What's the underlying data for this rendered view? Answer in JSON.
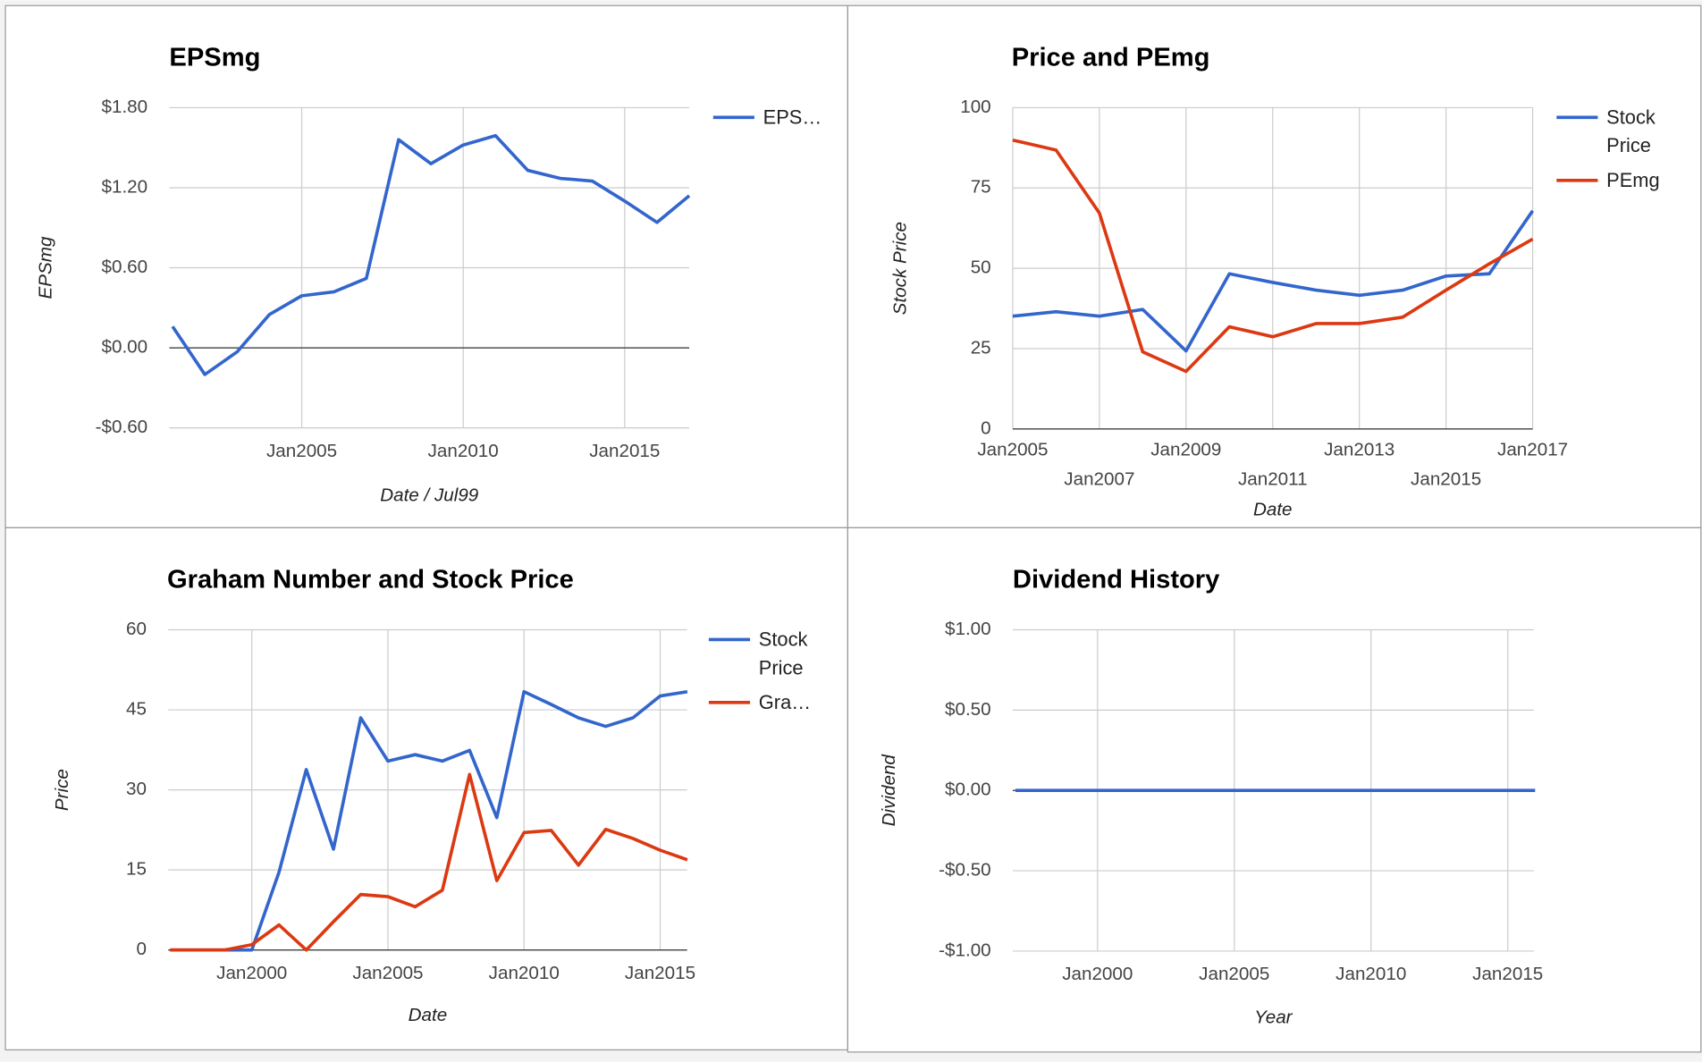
{
  "chart_data": [
    {
      "type": "line",
      "title": "EPSmg",
      "x_label": "Date / Jul99",
      "y_label": "EPSmg",
      "x": [
        2001,
        2002,
        2003,
        2004,
        2005,
        2006,
        2007,
        2008,
        2009,
        2010,
        2011,
        2012,
        2013,
        2014,
        2015,
        2016,
        2017
      ],
      "series": [
        {
          "name": "EPS…",
          "color": "#3366cc",
          "values": [
            0.16,
            -0.2,
            -0.03,
            0.25,
            0.39,
            0.42,
            0.52,
            1.56,
            1.38,
            1.52,
            1.59,
            1.33,
            1.27,
            1.25,
            1.1,
            0.94,
            1.14
          ]
        }
      ],
      "xlim": [
        2000.9,
        2017.0
      ],
      "xticks": [
        {
          "value": 2005,
          "label": "Jan2005"
        },
        {
          "value": 2010,
          "label": "Jan2010"
        },
        {
          "value": 2015,
          "label": "Jan2015"
        }
      ],
      "ylim": [
        -0.6,
        1.8
      ],
      "yticks": [
        {
          "value": -0.6,
          "label": "-$0.60"
        },
        {
          "value": 0,
          "label": "$0.00"
        },
        {
          "value": 0.6,
          "label": "$0.60"
        },
        {
          "value": 1.2,
          "label": "$1.20"
        },
        {
          "value": 1.8,
          "label": "$1.80"
        }
      ],
      "grid": true,
      "legend": "right"
    },
    {
      "type": "line",
      "title": "Price and PEmg",
      "x_label": "Date",
      "y_label": "Stock Price",
      "x": [
        2005,
        2006,
        2007,
        2008,
        2009,
        2010,
        2011,
        2012,
        2013,
        2014,
        2015,
        2016,
        2017
      ],
      "series": [
        {
          "name": "Stock Price",
          "color": "#3366cc",
          "values": [
            35.1,
            36.5,
            35.1,
            37.2,
            24.3,
            48.3,
            45.6,
            43.2,
            41.6,
            43.2,
            47.6,
            48.3,
            67.9
          ]
        },
        {
          "name": "PEmg",
          "color": "#dc3912",
          "values": [
            89.9,
            86.8,
            67.2,
            24.0,
            17.9,
            31.8,
            28.7,
            32.8,
            32.8,
            34.8,
            43.2,
            51.4,
            59.1
          ]
        }
      ],
      "xlim": [
        2005,
        2017
      ],
      "xticks": [
        {
          "value": 2005,
          "label": "Jan2005"
        },
        {
          "value": 2007,
          "label": "Jan2007"
        },
        {
          "value": 2009,
          "label": "Jan2009"
        },
        {
          "value": 2011,
          "label": "Jan2011"
        },
        {
          "value": 2013,
          "label": "Jan2013"
        },
        {
          "value": 2015,
          "label": "Jan2015"
        },
        {
          "value": 2017,
          "label": "Jan2017"
        }
      ],
      "ylim": [
        0,
        100
      ],
      "yticks": [
        0,
        25,
        50,
        75,
        100
      ],
      "grid": true,
      "legend": "right"
    },
    {
      "type": "line",
      "title": "Graham Number and Stock Price",
      "x_label": "Date",
      "y_label": "Price",
      "x": [
        1997,
        1998,
        1999,
        2000,
        2001,
        2002,
        2003,
        2004,
        2005,
        2006,
        2007,
        2008,
        2009,
        2010,
        2011,
        2012,
        2013,
        2014,
        2015,
        2016
      ],
      "series": [
        {
          "name": "Stock Price",
          "color": "#3366cc",
          "values": [
            0,
            0,
            0,
            0,
            14.6,
            33.8,
            18.9,
            43.5,
            35.4,
            36.6,
            35.4,
            37.4,
            24.8,
            48.4,
            46.0,
            43.5,
            41.9,
            43.5,
            47.6,
            48.4
          ]
        },
        {
          "name": "Gra…",
          "color": "#dc3912",
          "values": [
            0,
            0,
            0,
            1.0,
            4.7,
            0,
            5.3,
            10.4,
            10.0,
            8.1,
            11.2,
            32.9,
            13.0,
            22.0,
            22.4,
            15.9,
            22.6,
            20.9,
            18.7,
            16.9
          ]
        }
      ],
      "xlim": [
        1996.93,
        2015.99
      ],
      "xticks": [
        {
          "value": 2000,
          "label": "Jan2000"
        },
        {
          "value": 2005,
          "label": "Jan2005"
        },
        {
          "value": 2010,
          "label": "Jan2010"
        },
        {
          "value": 2015,
          "label": "Jan2015"
        }
      ],
      "ylim": [
        0,
        60
      ],
      "yticks": [
        0,
        15,
        30,
        45,
        60
      ],
      "grid": true,
      "legend": "right"
    },
    {
      "type": "line",
      "title": "Dividend History",
      "x_label": "Year",
      "y_label": "Dividend",
      "x": [
        1997,
        1998,
        1999,
        2000,
        2001,
        2002,
        2003,
        2004,
        2005,
        2006,
        2007,
        2008,
        2009,
        2010,
        2011,
        2012,
        2013,
        2014,
        2015,
        2016
      ],
      "series": [
        {
          "name": "Dividend",
          "color": "#3366cc",
          "values": [
            0,
            0,
            0,
            0,
            0,
            0,
            0,
            0,
            0,
            0,
            0,
            0,
            0,
            0,
            0,
            0,
            0,
            0,
            0,
            0
          ]
        }
      ],
      "xlim": [
        1996.9,
        2015.95
      ],
      "xticks": [
        {
          "value": 2000,
          "label": "Jan2000"
        },
        {
          "value": 2005,
          "label": "Jan2005"
        },
        {
          "value": 2010,
          "label": "Jan2010"
        },
        {
          "value": 2015,
          "label": "Jan2015"
        }
      ],
      "ylim": [
        -1,
        1
      ],
      "yticks": [
        {
          "value": -1,
          "label": "-$1.00"
        },
        {
          "value": -0.5,
          "label": "-$0.50"
        },
        {
          "value": 0,
          "label": "$0.00"
        },
        {
          "value": 0.5,
          "label": "$0.50"
        },
        {
          "value": 1,
          "label": "$1.00"
        }
      ],
      "grid": true,
      "legend": "none"
    }
  ]
}
